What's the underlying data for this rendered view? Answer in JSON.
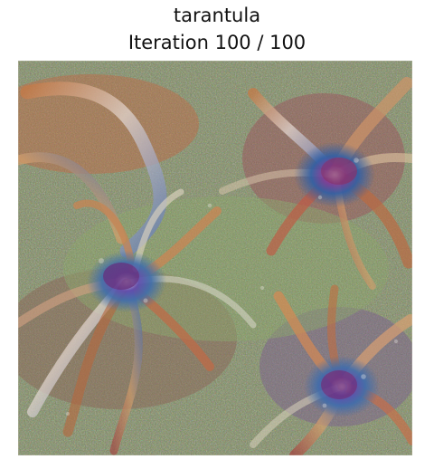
{
  "title": {
    "line1": "tarantula",
    "line2": "Iteration 100 / 100"
  },
  "image": {
    "subject": "tarantula",
    "style": "gradient-ascent noisy synthesized image",
    "palette": {
      "base": "#6d7a55",
      "green": "#6fa35a",
      "olive": "#8f8b5d",
      "red": "#a63f3f",
      "orange": "#c07a3f",
      "blue": "#3c5ea8",
      "purple": "#6d3e8f",
      "light": "#d8d0c0"
    }
  }
}
